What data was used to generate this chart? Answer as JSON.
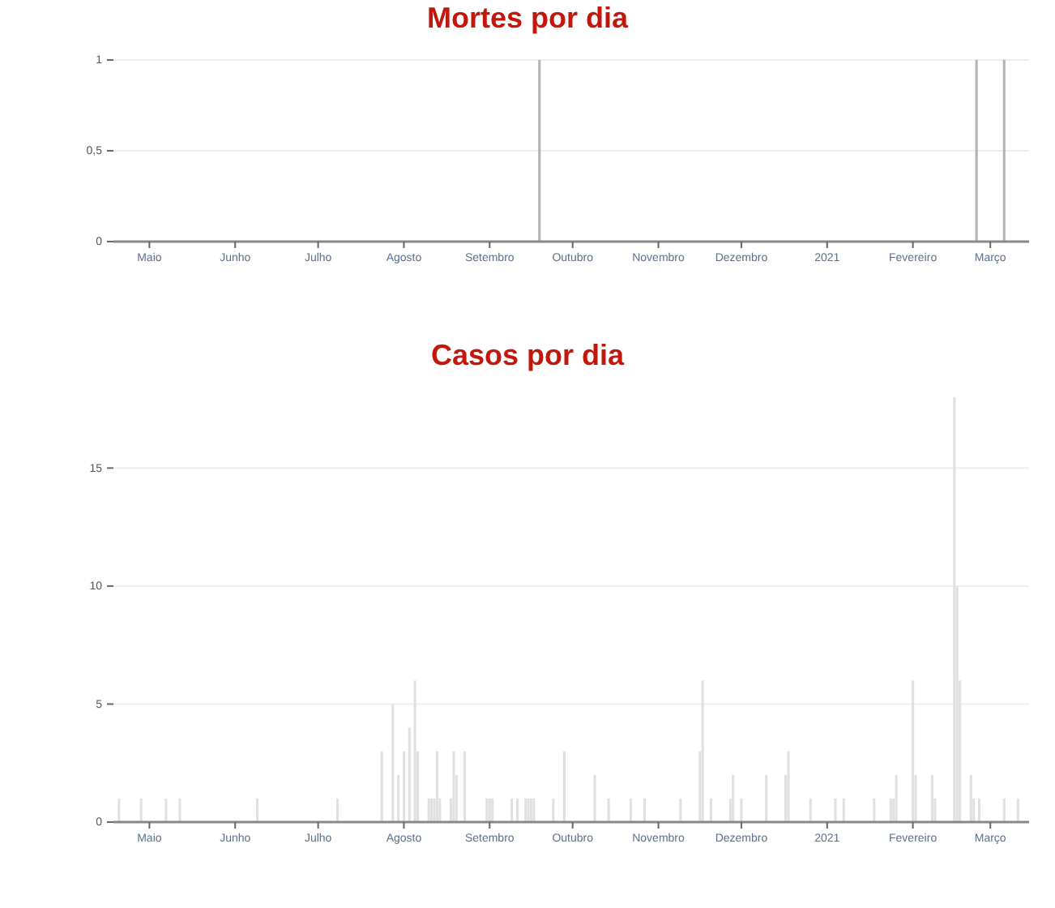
{
  "chart_data": [
    {
      "type": "bar",
      "title": "Mortes por dia",
      "x": [
        "2020-09-19",
        "2021-02-24",
        "2021-03-06"
      ],
      "values": [
        1,
        1,
        1
      ],
      "color": "#b3b3b3",
      "xlim": [
        "2020-04-18",
        "2021-03-15"
      ],
      "ylim": [
        0,
        1
      ],
      "yticks": [
        0,
        {
          "value": 0.5,
          "label": "0,5"
        },
        1
      ],
      "grid": "y",
      "xticks": [
        {
          "value": "2020-05-01",
          "label": "Maio"
        },
        {
          "value": "2020-06-01",
          "label": "Junho"
        },
        {
          "value": "2020-07-01",
          "label": "Julho"
        },
        {
          "value": "2020-08-01",
          "label": "Agosto"
        },
        {
          "value": "2020-09-01",
          "label": "Setembro"
        },
        {
          "value": "2020-10-01",
          "label": "Outubro"
        },
        {
          "value": "2020-11-01",
          "label": "Novembro"
        },
        {
          "value": "2020-12-01",
          "label": "Dezembro"
        },
        {
          "value": "2021-01-01",
          "label": "2021"
        },
        {
          "value": "2021-02-01",
          "label": "Fevereiro"
        },
        {
          "value": "2021-03-01",
          "label": "Março"
        }
      ]
    },
    {
      "type": "bar",
      "title": "Casos por dia",
      "color": "#e0e0e0",
      "xlim": [
        "2020-04-18",
        "2021-03-15"
      ],
      "ylim": [
        0,
        18
      ],
      "yticks": [
        0,
        5,
        10,
        15
      ],
      "grid": "y",
      "x": [
        "2020-04-20",
        "2020-04-28",
        "2020-05-07",
        "2020-05-12",
        "2020-06-09",
        "2020-07-08",
        "2020-07-24",
        "2020-07-28",
        "2020-07-30",
        "2020-08-01",
        "2020-08-03",
        "2020-08-05",
        "2020-08-06",
        "2020-08-10",
        "2020-08-11",
        "2020-08-12",
        "2020-08-13",
        "2020-08-14",
        "2020-08-18",
        "2020-08-19",
        "2020-08-20",
        "2020-08-23",
        "2020-08-31",
        "2020-09-01",
        "2020-09-02",
        "2020-09-09",
        "2020-09-11",
        "2020-09-14",
        "2020-09-15",
        "2020-09-16",
        "2020-09-17",
        "2020-09-24",
        "2020-09-28",
        "2020-10-09",
        "2020-10-14",
        "2020-10-22",
        "2020-10-27",
        "2020-11-09",
        "2020-11-16",
        "2020-11-17",
        "2020-11-20",
        "2020-11-27",
        "2020-11-28",
        "2020-12-01",
        "2020-12-10",
        "2020-12-17",
        "2020-12-18",
        "2020-12-26",
        "2021-01-04",
        "2021-01-07",
        "2021-01-18",
        "2021-01-24",
        "2021-01-25",
        "2021-01-26",
        "2021-02-01",
        "2021-02-02",
        "2021-02-08",
        "2021-02-09",
        "2021-02-16",
        "2021-02-17",
        "2021-02-18",
        "2021-02-22",
        "2021-02-23",
        "2021-02-25",
        "2021-03-06",
        "2021-03-11"
      ],
      "values": [
        1,
        1,
        1,
        1,
        1,
        1,
        3,
        5,
        2,
        3,
        4,
        6,
        3,
        1,
        1,
        1,
        3,
        1,
        1,
        3,
        2,
        3,
        1,
        1,
        1,
        1,
        1,
        1,
        1,
        1,
        1,
        1,
        3,
        2,
        1,
        1,
        1,
        1,
        3,
        6,
        1,
        1,
        2,
        1,
        2,
        2,
        3,
        1,
        1,
        1,
        1,
        1,
        1,
        2,
        6,
        2,
        2,
        1,
        18,
        10,
        6,
        2,
        1,
        1,
        1,
        1
      ],
      "xticks": [
        {
          "value": "2020-05-01",
          "label": "Maio"
        },
        {
          "value": "2020-06-01",
          "label": "Junho"
        },
        {
          "value": "2020-07-01",
          "label": "Julho"
        },
        {
          "value": "2020-08-01",
          "label": "Agosto"
        },
        {
          "value": "2020-09-01",
          "label": "Setembro"
        },
        {
          "value": "2020-10-01",
          "label": "Outubro"
        },
        {
          "value": "2020-11-01",
          "label": "Novembro"
        },
        {
          "value": "2020-12-01",
          "label": "Dezembro"
        },
        {
          "value": "2021-01-01",
          "label": "2021"
        },
        {
          "value": "2021-02-01",
          "label": "Fevereiro"
        },
        {
          "value": "2021-03-01",
          "label": "Março"
        }
      ]
    }
  ]
}
